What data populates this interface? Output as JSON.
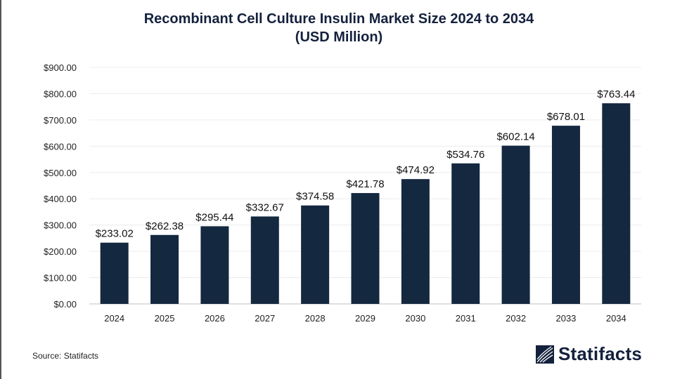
{
  "chart_data": {
    "type": "bar",
    "title": "Recombinant Cell Culture Insulin Market Size 2024 to 2034",
    "subtitle": "(USD Million)",
    "categories": [
      "2024",
      "2025",
      "2026",
      "2027",
      "2028",
      "2029",
      "2030",
      "2031",
      "2032",
      "2033",
      "2034"
    ],
    "values": [
      233.02,
      262.38,
      295.44,
      332.67,
      374.58,
      421.78,
      474.92,
      534.76,
      602.14,
      678.01,
      763.44
    ],
    "data_labels": [
      "$233.02",
      "$262.38",
      "$295.44",
      "$332.67",
      "$374.58",
      "$421.78",
      "$474.92",
      "$534.76",
      "$602.14",
      "$678.01",
      "$763.44"
    ],
    "y_ticks": [
      "$0.00",
      "$100.00",
      "$200.00",
      "$300.00",
      "$400.00",
      "$500.00",
      "$600.00",
      "$700.00",
      "$800.00",
      "$900.00"
    ],
    "ylim": [
      0,
      900
    ],
    "xlabel": "",
    "ylabel": "",
    "grid": true,
    "bar_color": "#14283f"
  },
  "footer": {
    "source": "Source: Statifacts",
    "logo_text": "Statifacts"
  }
}
